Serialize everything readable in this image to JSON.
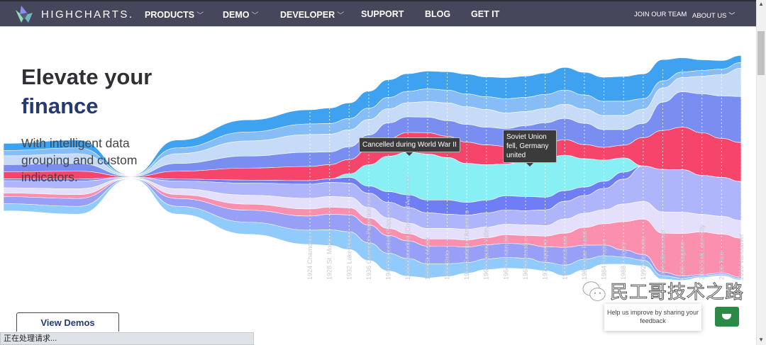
{
  "nav": {
    "brand": "HIGHCHARTS.",
    "items": [
      {
        "label": "PRODUCTS",
        "dropdown": true
      },
      {
        "label": "DEMO",
        "dropdown": true
      },
      {
        "label": "DEVELOPER",
        "dropdown": true
      },
      {
        "label": "SUPPORT",
        "dropdown": false
      },
      {
        "label": "BLOG",
        "dropdown": false
      },
      {
        "label": "GET IT",
        "dropdown": false
      }
    ],
    "right": [
      {
        "label": "JOIN OUR TEAM",
        "dropdown": false
      },
      {
        "label": "ABOUT US",
        "dropdown": true
      }
    ]
  },
  "hero": {
    "title_line1": "Elevate your",
    "title_line2": "finance",
    "subtitle": "With intelligent data grouping and custom indicators.",
    "cta": "View Demos"
  },
  "status_bar": "正在处理请求...",
  "feedback": {
    "text": "Help us improve by sharing your feedback"
  },
  "watermark": "民工哥技术之路",
  "colors": {
    "nav_bg": "#47475c",
    "title_accent": "#263a72",
    "feedback_green": "#2b8a45"
  },
  "chart_data": {
    "type": "streamgraph",
    "categories": [
      "1924 Chamonix",
      "1928 St. Moritz",
      "1932 Lake Placid",
      "1936 Garmisch-Partenkirchen",
      "1940 Cancelled (Sapporo)",
      "1944 Cancelled (Cortina d'Ampezzo)",
      "1948 St. Moritz",
      "1952 Oslo",
      "1956 Cortina d'Ampezzo",
      "1960 Squaw Valley",
      "1964 Innsbruck",
      "1968 Grenoble",
      "1972 Sapporo",
      "1976 Innsbruck",
      "1980 Lake Placid",
      "1984 Sarajevo",
      "1988 Calgary",
      "1992 Albertville",
      "1994 Lillehammer",
      "1998 Nagano",
      "2002 Salt Lake City",
      "2006 Turin",
      "2010 Vancouver"
    ],
    "annotations": [
      {
        "category": "1944 Cancelled (Cortina d'Ampezzo)",
        "text": "Cancelled during World War II"
      },
      {
        "category": "1992 Albertville",
        "text": "Soviet Union fell, Germany united"
      }
    ],
    "series": [
      {
        "color": "#3fa2f0",
        "values": [
          20,
          22,
          22,
          24,
          25,
          25,
          25,
          26,
          28,
          28,
          30,
          30,
          30,
          32,
          32,
          34,
          35,
          35,
          30,
          20,
          15,
          12,
          10
        ]
      },
      {
        "color": "#86bdf6",
        "values": [
          15,
          15,
          16,
          16,
          16,
          16,
          18,
          18,
          18,
          18,
          20,
          20,
          20,
          20,
          20,
          20,
          20,
          15,
          10,
          8,
          8,
          8,
          8
        ]
      },
      {
        "color": "#c6dbf8",
        "values": [
          25,
          25,
          24,
          22,
          20,
          20,
          22,
          25,
          25,
          25,
          22,
          20,
          20,
          20,
          20,
          20,
          20,
          20,
          20,
          20,
          25,
          30,
          40
        ]
      },
      {
        "color": "#7a8ef2",
        "values": [
          20,
          18,
          18,
          20,
          22,
          22,
          22,
          22,
          25,
          25,
          25,
          28,
          30,
          30,
          30,
          25,
          22,
          20,
          40,
          50,
          55,
          60,
          65
        ]
      },
      {
        "color": "#f6456a",
        "values": [
          20,
          20,
          20,
          22,
          25,
          28,
          30,
          30,
          30,
          28,
          25,
          22,
          20,
          22,
          20,
          18,
          18,
          40,
          55,
          60,
          60,
          55,
          55
        ]
      },
      {
        "color": "#88eff5",
        "values": [
          0,
          0,
          5,
          30,
          50,
          60,
          65,
          60,
          55,
          50,
          45,
          50,
          55,
          50,
          40,
          30,
          20,
          0,
          0,
          0,
          0,
          0,
          0
        ]
      },
      {
        "color": "#6f7ef4",
        "values": [
          5,
          5,
          8,
          10,
          15,
          18,
          18,
          20,
          18,
          18,
          20,
          20,
          18,
          15,
          12,
          10,
          10,
          0,
          0,
          0,
          0,
          0,
          0
        ]
      },
      {
        "color": "#aeb5fa",
        "values": [
          20,
          20,
          20,
          20,
          22,
          22,
          22,
          20,
          20,
          20,
          20,
          20,
          22,
          25,
          25,
          30,
          35,
          50,
          60,
          60,
          55,
          55,
          55
        ]
      },
      {
        "color": "#e4e0fc",
        "values": [
          15,
          15,
          15,
          15,
          15,
          15,
          15,
          15,
          15,
          15,
          15,
          15,
          15,
          20,
          20,
          20,
          25,
          25,
          30,
          30,
          25,
          25,
          25
        ]
      },
      {
        "color": "#fa8fae",
        "values": [
          10,
          10,
          10,
          10,
          10,
          10,
          10,
          10,
          10,
          10,
          12,
          12,
          15,
          20,
          25,
          30,
          40,
          50,
          55,
          60,
          60,
          55,
          55
        ]
      },
      {
        "color": "#979ff6",
        "values": [
          20,
          22,
          24,
          25,
          25,
          25,
          25,
          25,
          22,
          20,
          20,
          20,
          22,
          25,
          20,
          15,
          10,
          8,
          5,
          3,
          2,
          2,
          2
        ]
      },
      {
        "color": "#90cbfb",
        "values": [
          20,
          22,
          25,
          25,
          25,
          25,
          20,
          18,
          15,
          15,
          15,
          15,
          12,
          15,
          15,
          12,
          10,
          8,
          5,
          3,
          2,
          2,
          2
        ]
      }
    ]
  }
}
